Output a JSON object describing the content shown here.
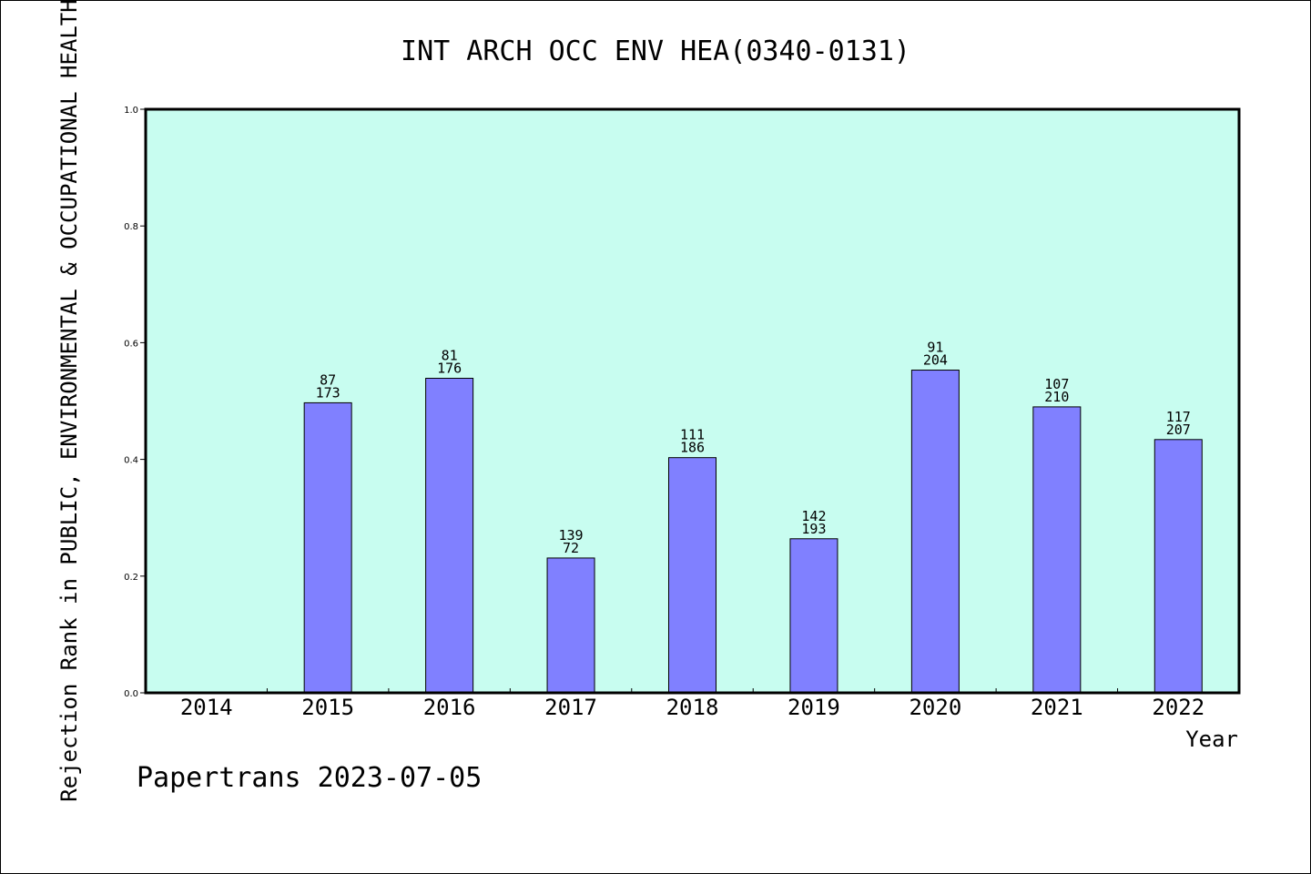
{
  "chart_data": {
    "type": "bar",
    "title": "INT ARCH OCC ENV HEA(0340-0131)",
    "xlabel": "Year",
    "ylabel": "Rejection Rank in PUBLIC, ENVIRONMENTAL & OCCUPATIONAL HEALTH",
    "ylim": [
      0,
      1.0
    ],
    "yticks": [
      "0.0",
      "0.2",
      "0.4",
      "0.6",
      "0.8",
      "1.0"
    ],
    "categories": [
      "2014",
      "2015",
      "2016",
      "2017",
      "2018",
      "2019",
      "2020",
      "2021",
      "2022"
    ],
    "values": [
      null,
      0.497,
      0.539,
      0.231,
      0.403,
      0.264,
      0.553,
      0.49,
      0.434
    ],
    "labels_top": [
      "",
      "87",
      "81",
      "139",
      "111",
      "142",
      "91",
      "107",
      "117"
    ],
    "labels_bottom": [
      "",
      "173",
      "176",
      "72",
      "186",
      "193",
      "204",
      "210",
      "207"
    ],
    "plot_background": "#c8fdf0",
    "bar_color": "#8080ff",
    "grid": false,
    "legend": "none"
  },
  "footer": "Papertrans 2023-07-05"
}
